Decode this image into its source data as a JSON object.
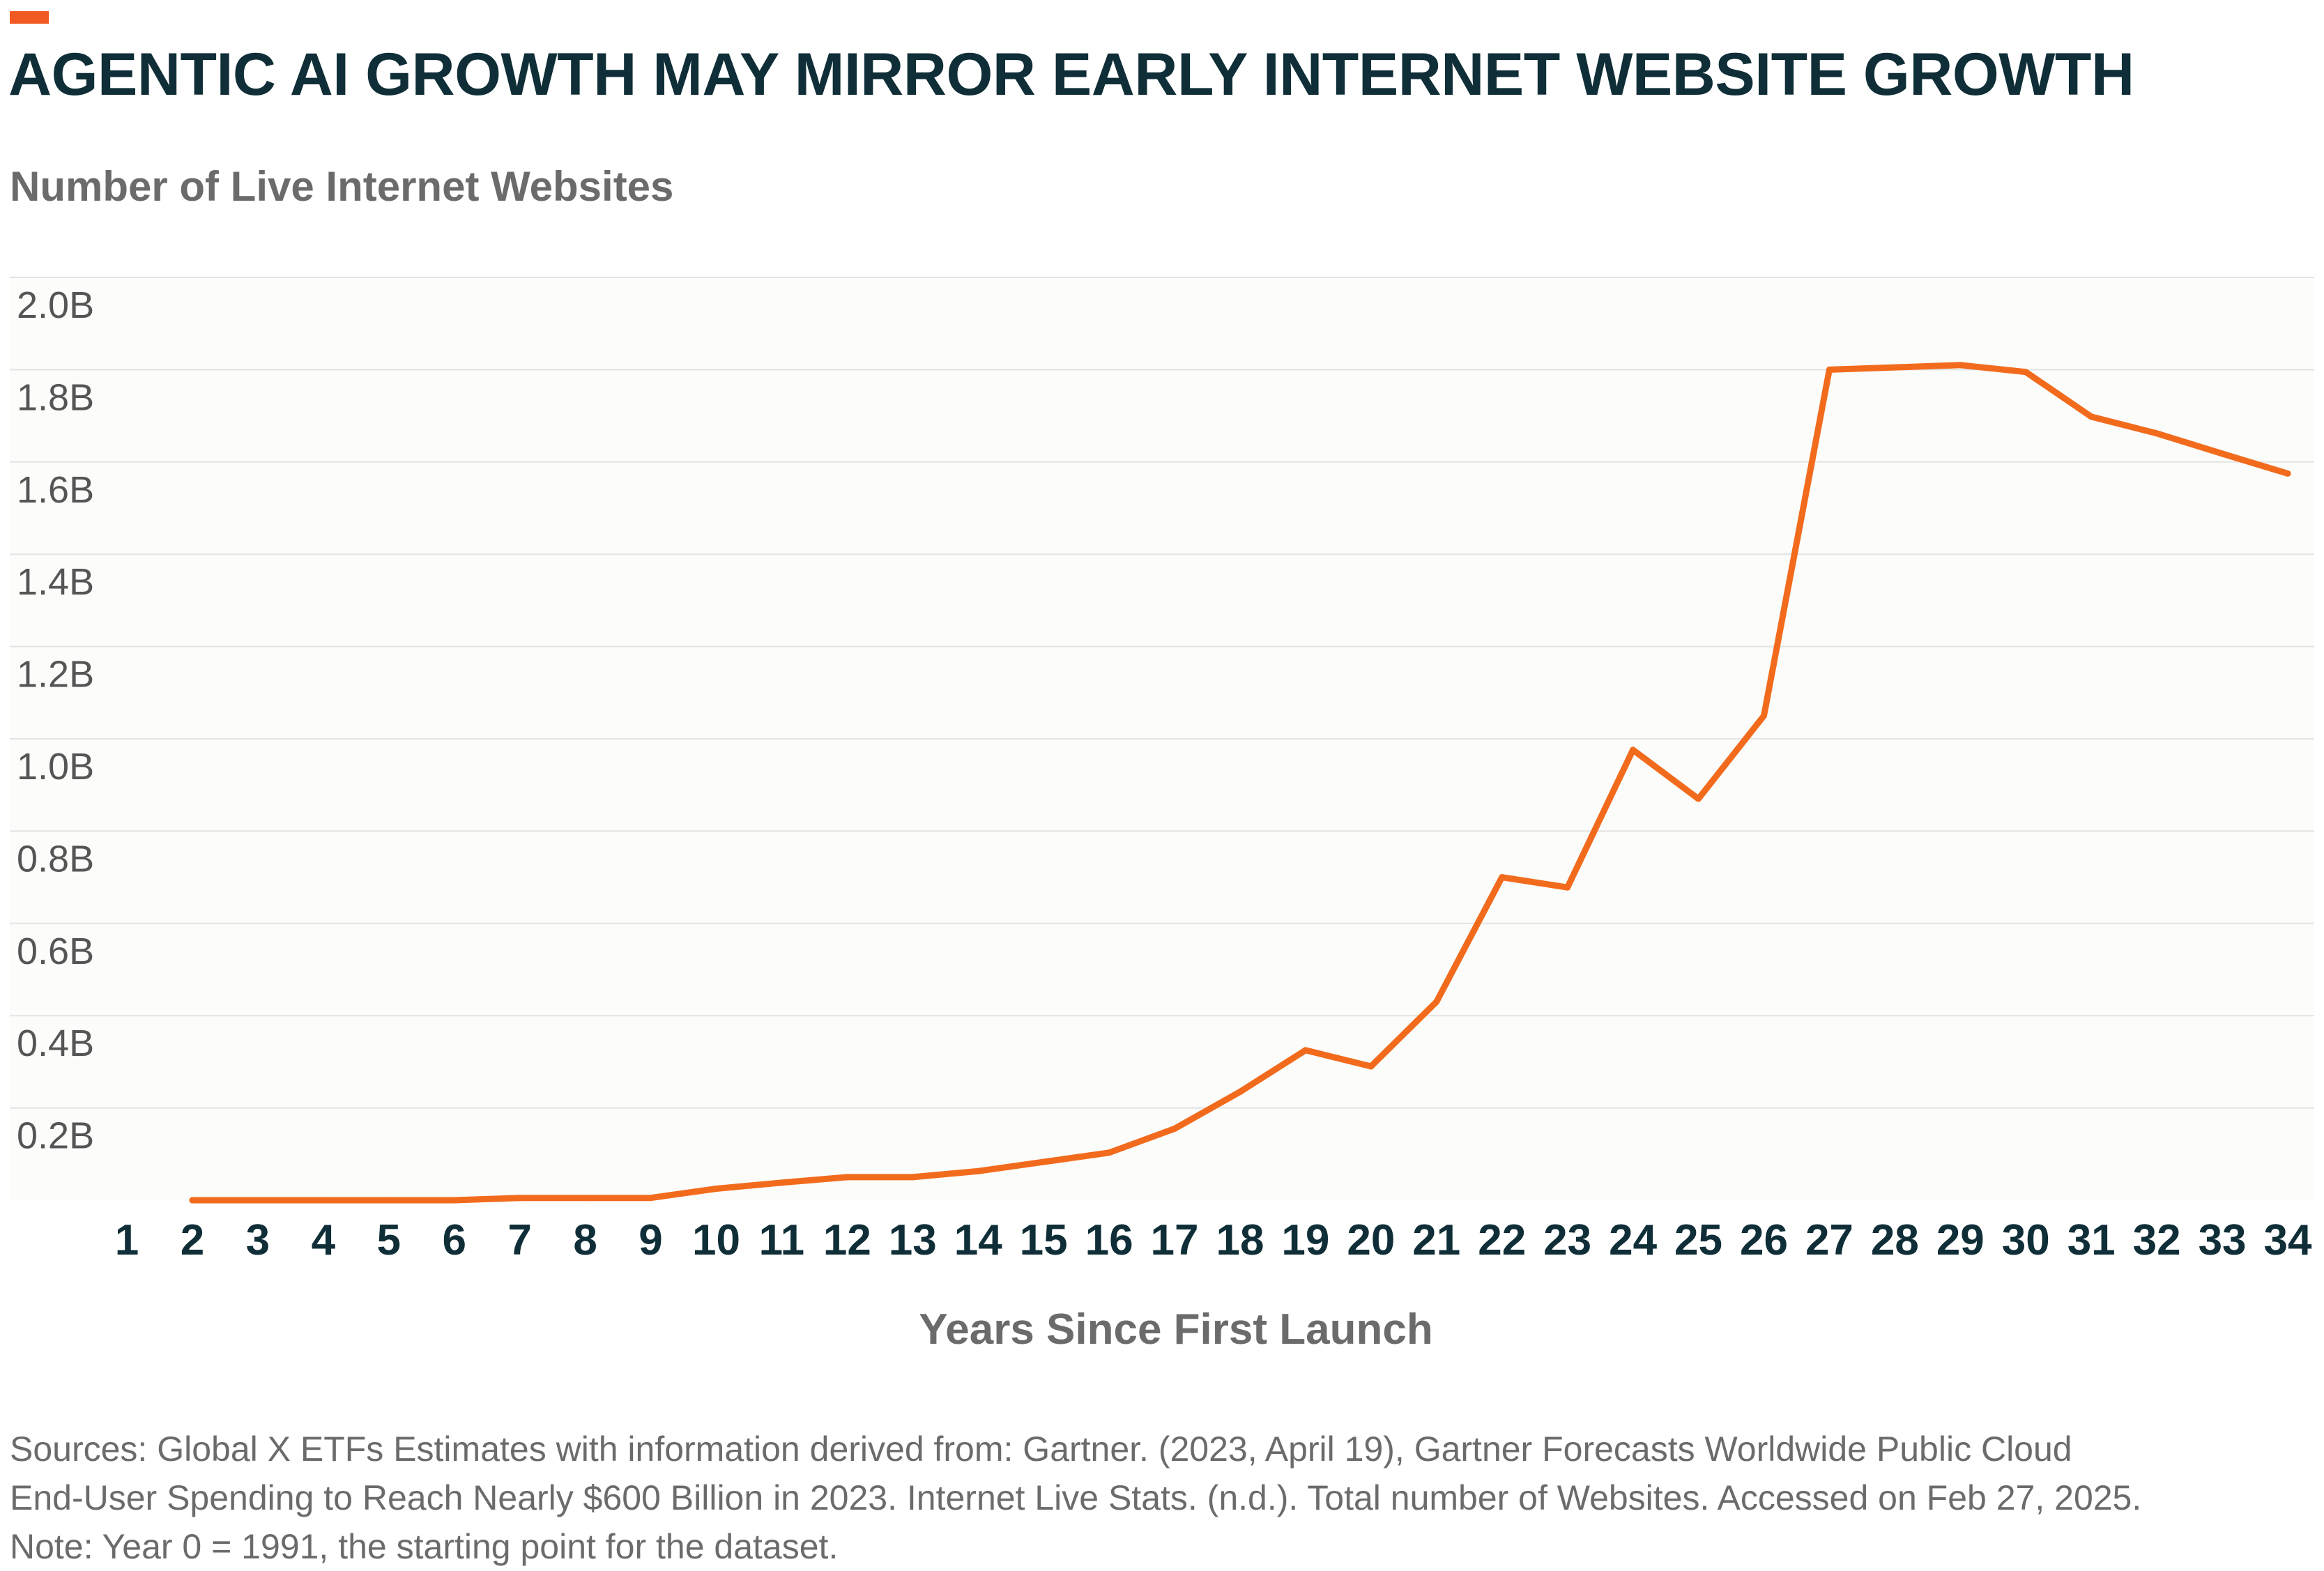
{
  "colors": {
    "accent": "#F15A22",
    "title": "#0F2E37",
    "subtitle": "#6B6B6B",
    "line": "#F26B1D",
    "grid": "#E3E3E3",
    "plot_bg": "#FCFCFA",
    "ytick": "#555555",
    "xtick": "#0F2E37",
    "xlabel": "#6B6B6B",
    "sources": "#6B6B6B"
  },
  "sources": {
    "line1": "Sources: Global X ETFs Estimates with information derived from: Gartner. (2023, April 19), Gartner Forecasts Worldwide Public Cloud",
    "line2": "End-User Spending to Reach Nearly $600 Billion in 2023. Internet Live Stats. (n.d.). Total number of Websites. Accessed on Feb 27, 2025.",
    "line3": "Note: Year 0 = 1991, the starting point for the dataset."
  },
  "chart_data": {
    "type": "line",
    "title": "AGENTIC AI GROWTH MAY MIRROR EARLY INTERNET WEBSITE GROWTH",
    "subtitle": "Number of Live Internet Websites",
    "xlabel": "Years Since First Launch",
    "ylabel": "",
    "grid": true,
    "legend": "none",
    "categories": [
      "1",
      "2",
      "3",
      "4",
      "5",
      "6",
      "7",
      "8",
      "9",
      "10",
      "11",
      "12",
      "13",
      "14",
      "15",
      "16",
      "17",
      "18",
      "19",
      "20",
      "21",
      "22",
      "23",
      "24",
      "25",
      "26",
      "27",
      "28",
      "29",
      "30",
      "31",
      "32",
      "33",
      "34"
    ],
    "ylim": [
      0,
      2.0
    ],
    "y_unit": "billions",
    "yticks": [
      {
        "value": 0.2,
        "label": "0.2B"
      },
      {
        "value": 0.4,
        "label": "0.4B"
      },
      {
        "value": 0.6,
        "label": "0.6B"
      },
      {
        "value": 0.8,
        "label": "0.8B"
      },
      {
        "value": 1.0,
        "label": "1.0B"
      },
      {
        "value": 1.2,
        "label": "1.2B"
      },
      {
        "value": 1.4,
        "label": "1.4B"
      },
      {
        "value": 1.6,
        "label": "1.6B"
      },
      {
        "value": 1.8,
        "label": "1.8B"
      },
      {
        "value": 2.0,
        "label": "2.0B"
      }
    ],
    "series": [
      {
        "x": [
          "2",
          "3",
          "4",
          "5",
          "6",
          "7",
          "8",
          "9",
          "10",
          "11",
          "12",
          "13",
          "14",
          "15",
          "16",
          "17",
          "18",
          "19",
          "20",
          "21",
          "22",
          "23",
          "24",
          "25",
          "26",
          "27",
          "28",
          "29",
          "30",
          "31",
          "32",
          "33",
          "34"
        ],
        "values": [
          0.0,
          0.0,
          0.0,
          0.0,
          0.0,
          0.005,
          0.005,
          0.005,
          0.025,
          0.038,
          0.05,
          0.05,
          0.063,
          0.083,
          0.103,
          0.155,
          0.235,
          0.325,
          0.29,
          0.43,
          0.7,
          0.678,
          0.976,
          0.87,
          1.05,
          1.8,
          1.805,
          1.81,
          1.795,
          1.698,
          1.662,
          1.618,
          1.575
        ]
      }
    ]
  }
}
